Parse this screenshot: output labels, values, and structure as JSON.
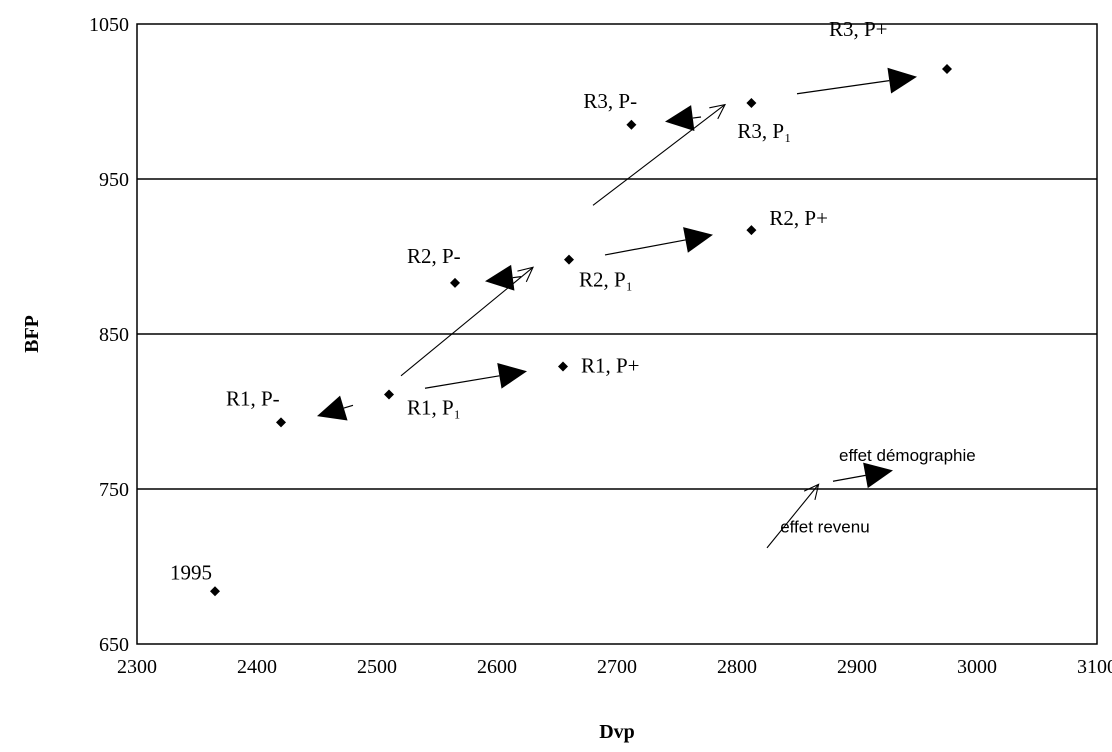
{
  "chart_data": {
    "type": "scatter",
    "title": "",
    "xlabel": "Dvp",
    "ylabel": "BFP",
    "xlim": [
      2300,
      3100
    ],
    "ylim": [
      650,
      1050
    ],
    "x_ticks": [
      "2300",
      "2400",
      "2500",
      "2600",
      "2700",
      "2800",
      "2900",
      "3000",
      "3100"
    ],
    "y_ticks": [
      "650",
      "750",
      "850",
      "950",
      "1050"
    ],
    "grid": "horizontal",
    "legend": "none",
    "points": [
      {
        "label": "1995",
        "x": 2365,
        "y": 684
      },
      {
        "label": "R1, P-",
        "x": 2420,
        "y": 793
      },
      {
        "label": "R1, P₁",
        "x": 2510,
        "y": 811
      },
      {
        "label": "R1, P+",
        "x": 2655,
        "y": 829
      },
      {
        "label": "R2, P-",
        "x": 2565,
        "y": 883
      },
      {
        "label": "R2, P₁",
        "x": 2660,
        "y": 898
      },
      {
        "label": "R2, P+",
        "x": 2812,
        "y": 917
      },
      {
        "label": "R3, P-",
        "x": 2712,
        "y": 985
      },
      {
        "label": "R3, P₁",
        "x": 2812,
        "y": 999
      },
      {
        "label": "R3, P+",
        "x": 2975,
        "y": 1021
      }
    ],
    "annotations": [
      {
        "text": "effet démographie"
      },
      {
        "text": "effet revenu"
      }
    ]
  }
}
